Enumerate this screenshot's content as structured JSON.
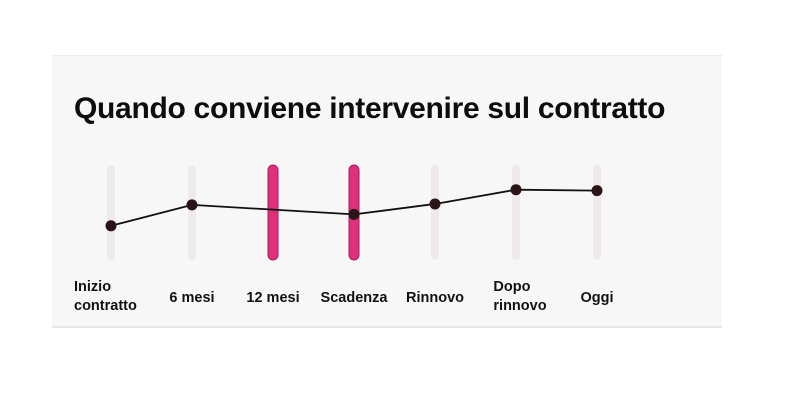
{
  "title": "Quando conviene intervenire sul contratto",
  "chart_data": {
    "type": "line",
    "categories": [
      "Inizio\ncontratto",
      "6 mesi",
      "12 mesi",
      "Scadenza",
      "Rinnovo",
      "Dopo\nrinnovo",
      "Oggi"
    ],
    "values": [
      36,
      58,
      null,
      48,
      59,
      74,
      73
    ],
    "highlighted": [
      false,
      false,
      true,
      true,
      false,
      false,
      false
    ],
    "ylim": [
      0,
      100
    ],
    "grid": false,
    "colors": {
      "line": "#111111",
      "point": "#2a1418",
      "highlight": "#e0307a",
      "bar": "#efe9ea"
    }
  }
}
